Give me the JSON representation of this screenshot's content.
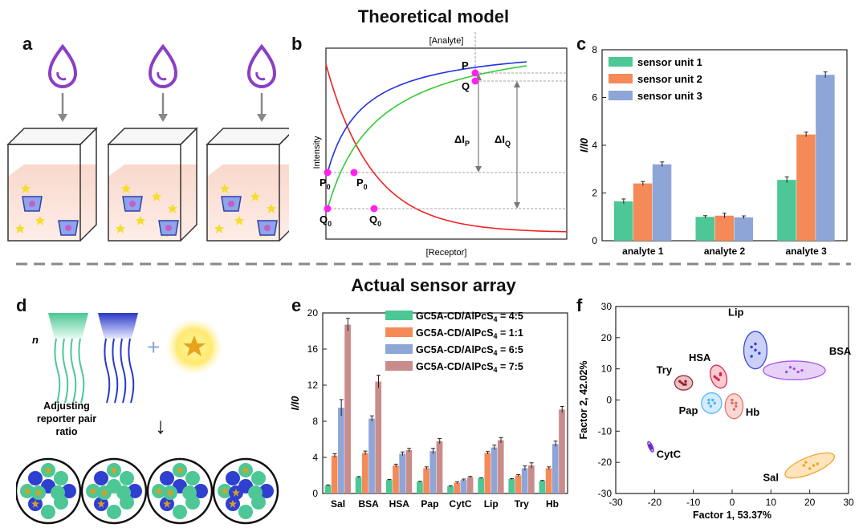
{
  "titles": {
    "top": "Theoretical model",
    "bottom": "Actual sensor array"
  },
  "panels": {
    "a": "a",
    "b": "b",
    "c": "c",
    "d": "d",
    "e": "e",
    "f": "f"
  },
  "panel_b": {
    "top_label": "[Analyte]",
    "bottom_label": "[Receptor]",
    "y_label": "Intensity",
    "p": "P",
    "q": "Q",
    "p0_left": "P",
    "q0_left": "Q",
    "p0_mid": "P",
    "q0_mid": "Q",
    "sub0": "0",
    "delta_p": "ΔI",
    "delta_p_sub": "P",
    "delta_q": "ΔI",
    "delta_q_sub": "Q",
    "colors": {
      "blue": "#2233dd",
      "green": "#33cc33",
      "red": "#ee2222",
      "marker": "#ff22ee"
    }
  },
  "panel_d": {
    "n_label": "n",
    "caption_line1": "Adjusting",
    "caption_line2": "reporter pair",
    "caption_line3": "ratio",
    "arrow": "↓"
  },
  "chart_data": [
    {
      "id": "c",
      "type": "bar",
      "title": "",
      "xlabel": "",
      "ylabel": "I/I0",
      "ylim": [
        0,
        8
      ],
      "yticks": [
        "0",
        "2",
        "4",
        "6",
        "8"
      ],
      "categories": [
        "analyte 1",
        "analyte 2",
        "analyte 3"
      ],
      "series": [
        {
          "name": "sensor unit 1",
          "color": "#4cc795",
          "values": [
            1.65,
            1.0,
            2.55
          ],
          "errors": [
            0.1,
            0.05,
            0.12
          ]
        },
        {
          "name": "sensor unit 2",
          "color": "#f48a57",
          "values": [
            2.4,
            1.05,
            4.45
          ],
          "errors": [
            0.08,
            0.1,
            0.1
          ]
        },
        {
          "name": "sensor unit 3",
          "color": "#8ea5d8",
          "values": [
            3.2,
            0.98,
            6.95
          ],
          "errors": [
            0.1,
            0.06,
            0.12
          ]
        }
      ]
    },
    {
      "id": "e",
      "type": "bar",
      "title": "",
      "xlabel": "",
      "ylabel": "I/I0",
      "ylim": [
        0,
        20
      ],
      "yticks": [
        "0",
        "4",
        "8",
        "12",
        "16",
        "20"
      ],
      "categories": [
        "Sal",
        "BSA",
        "HSA",
        "Pap",
        "CytC",
        "Lip",
        "Try",
        "Hb"
      ],
      "series": [
        {
          "name": "GC5A-CD/AlPcS4 = 4:5",
          "label_main": "GC5A-CD/AlPcS",
          "label_sub": "4",
          "label_ratio": " = 4:5",
          "color": "#4cc795",
          "values": [
            0.9,
            1.8,
            1.5,
            1.3,
            0.8,
            1.7,
            1.6,
            1.4
          ],
          "errors": [
            0.05,
            0.08,
            0.05,
            0.05,
            0.05,
            0.05,
            0.05,
            0.05
          ]
        },
        {
          "name": "GC5A-CD/AlPcS4 = 1:1",
          "label_main": "GC5A-CD/AlPcS",
          "label_sub": "4",
          "label_ratio": " = 1:1",
          "color": "#f48a57",
          "values": [
            4.2,
            4.5,
            3.1,
            2.8,
            1.2,
            4.5,
            2.0,
            2.8
          ],
          "errors": [
            0.2,
            0.2,
            0.15,
            0.15,
            0.1,
            0.15,
            0.1,
            0.15
          ]
        },
        {
          "name": "GC5A-CD/AlPcS4 = 6:5",
          "label_main": "GC5A-CD/AlPcS",
          "label_sub": "4",
          "label_ratio": " = 6:5",
          "color": "#8ea5d8",
          "values": [
            9.5,
            8.3,
            4.4,
            4.7,
            1.5,
            5.1,
            2.8,
            5.5
          ],
          "errors": [
            0.9,
            0.3,
            0.2,
            0.3,
            0.1,
            0.25,
            0.25,
            0.3
          ]
        },
        {
          "name": "GC5A-CD/AlPcS4 = 7:5",
          "label_main": "GC5A-CD/AlPcS",
          "label_sub": "4",
          "label_ratio": " = 7:5",
          "color": "#c98c8a",
          "values": [
            18.7,
            12.4,
            4.8,
            5.8,
            1.8,
            5.9,
            3.1,
            9.3
          ],
          "errors": [
            0.7,
            0.7,
            0.2,
            0.3,
            0.1,
            0.3,
            0.3,
            0.35
          ]
        }
      ]
    },
    {
      "id": "f",
      "type": "scatter",
      "title": "",
      "xlabel": "Factor 1, 53.37%",
      "ylabel": "Factor 2, 42.02%",
      "xlim": [
        -30,
        30
      ],
      "ylim": [
        -30,
        30
      ],
      "xticks": [
        "-30",
        "-20",
        "-10",
        "0",
        "10",
        "20",
        "30"
      ],
      "yticks": [
        "-30",
        "-20",
        "-10",
        "0",
        "10",
        "20",
        "30"
      ],
      "groups": [
        {
          "name": "Lip",
          "color": "#2f3fe0",
          "fill": "#c9cff5",
          "cx": 6,
          "cy": 16,
          "rx": 3,
          "ry": 6,
          "angle": 0,
          "points": [
            [
              5,
              17
            ],
            [
              6,
              16
            ],
            [
              7,
              15
            ],
            [
              6,
              18
            ],
            [
              5,
              14
            ]
          ]
        },
        {
          "name": "BSA",
          "color": "#a64fe6",
          "fill": "#e6d0f7",
          "cx": 16,
          "cy": 9.5,
          "rx": 8,
          "ry": 3,
          "angle": 0,
          "points": [
            [
              14,
              9
            ],
            [
              16,
              10
            ],
            [
              18,
              9.5
            ],
            [
              15,
              10.5
            ],
            [
              17,
              9
            ]
          ]
        },
        {
          "name": "HSA",
          "color": "#e0203f",
          "fill": "#f7c9d2",
          "cx": -3.5,
          "cy": 7.5,
          "rx": 2,
          "ry": 3.8,
          "angle": 20,
          "points": [
            [
              -4,
              7
            ],
            [
              -3,
              8
            ],
            [
              -3.5,
              6.5
            ],
            [
              -4.5,
              7.5
            ],
            [
              -3,
              8.5
            ]
          ]
        },
        {
          "name": "Try",
          "color": "#9b1e2a",
          "fill": "#e7c0c3",
          "cx": -12.5,
          "cy": 5.5,
          "rx": 2.3,
          "ry": 2.3,
          "angle": 0,
          "points": [
            [
              -13,
              5.5
            ],
            [
              -12,
              6
            ],
            [
              -12.5,
              5
            ],
            [
              -13.5,
              6
            ],
            [
              -12,
              5
            ]
          ]
        },
        {
          "name": "Pap",
          "color": "#4bb4f0",
          "fill": "#d2ecfb",
          "cx": -5.3,
          "cy": -1,
          "rx": 2.6,
          "ry": 3.3,
          "angle": 0,
          "points": [
            [
              -6,
              -1
            ],
            [
              -5,
              0
            ],
            [
              -5.5,
              -2
            ],
            [
              -4.5,
              -1
            ],
            [
              -6,
              0
            ]
          ]
        },
        {
          "name": "Hb",
          "color": "#e36a5f",
          "fill": "#f8d6d1",
          "cx": 0.5,
          "cy": -2,
          "rx": 2.3,
          "ry": 4,
          "angle": 0,
          "points": [
            [
              0,
              -1
            ],
            [
              1,
              -2
            ],
            [
              0.5,
              -3
            ],
            [
              0,
              0
            ],
            [
              1,
              -1
            ]
          ]
        },
        {
          "name": "CytC",
          "color": "#6a22c8",
          "fill": "#d8c5f1",
          "cx": -21,
          "cy": -15,
          "rx": 0.5,
          "ry": 1.8,
          "angle": 25,
          "points": [
            [
              -21,
              -15
            ],
            [
              -21.2,
              -14.5
            ],
            [
              -20.8,
              -15.5
            ]
          ]
        },
        {
          "name": "Sal",
          "color": "#f2a020",
          "fill": "#fde3b8",
          "cx": 20,
          "cy": -21,
          "rx": 6.8,
          "ry": 2.7,
          "angle": 22,
          "points": [
            [
              19,
              -20
            ],
            [
              21,
              -21
            ],
            [
              20,
              -22
            ],
            [
              22,
              -20.5
            ],
            [
              18.5,
              -21
            ]
          ]
        }
      ]
    }
  ]
}
